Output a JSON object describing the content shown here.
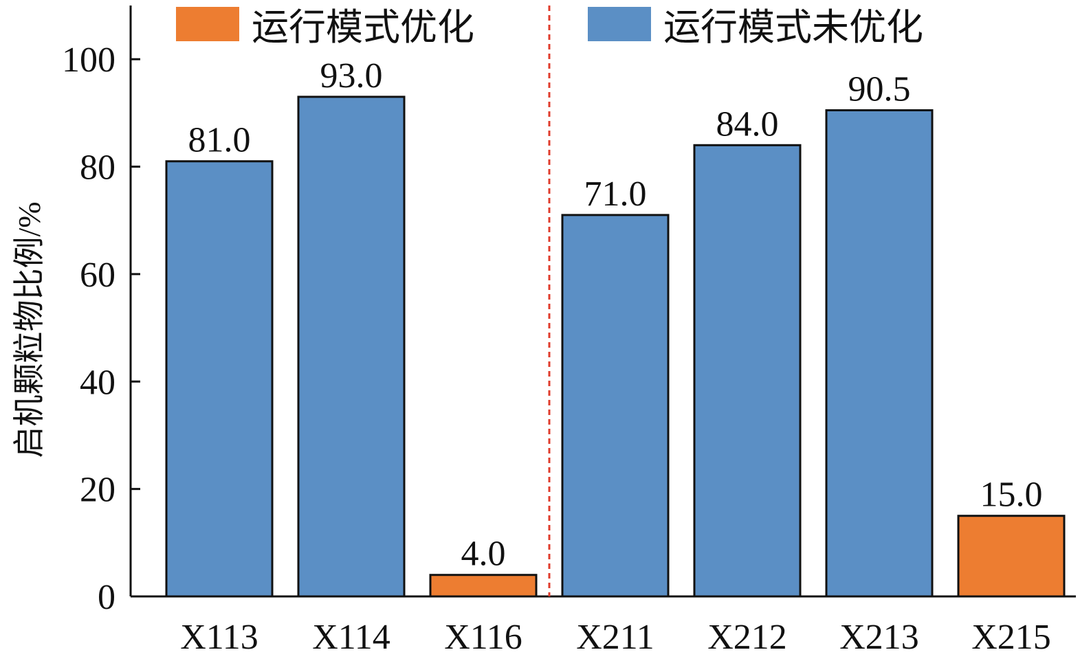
{
  "chart_data": {
    "type": "bar",
    "title": "",
    "xlabel": "",
    "ylabel": "启机颗粒物比例/%",
    "ylim": [
      0,
      110
    ],
    "yticks": [
      0,
      20,
      40,
      60,
      80,
      100
    ],
    "grid": false,
    "legend_position": "top",
    "categories": [
      "X113",
      "X114",
      "X116",
      "X211",
      "X212",
      "X213",
      "X215"
    ],
    "values": [
      81.0,
      93.0,
      4.0,
      71.0,
      84.0,
      90.5,
      15.0
    ],
    "value_labels": [
      "81.0",
      "93.0",
      "4.0",
      "71.0",
      "84.0",
      "90.5",
      "15.0"
    ],
    "series_of_bar": [
      "运行模式未优化",
      "运行模式未优化",
      "运行模式优化",
      "运行模式未优化",
      "运行模式未优化",
      "运行模式未优化",
      "运行模式优化"
    ],
    "legend": [
      {
        "name": "运行模式优化",
        "color": "#ed7d31"
      },
      {
        "name": "运行模式未优化",
        "color": "#5b8fc5"
      }
    ],
    "separator": {
      "after_category_index": 2,
      "color": "#e03c2c",
      "style": "dashed"
    }
  }
}
